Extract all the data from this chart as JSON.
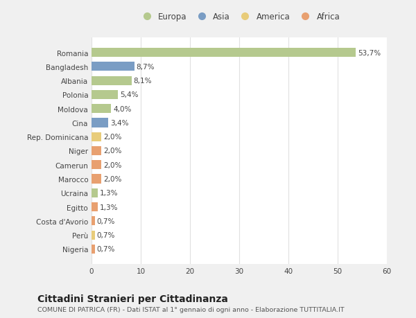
{
  "categories": [
    "Romania",
    "Bangladesh",
    "Albania",
    "Polonia",
    "Moldova",
    "Cina",
    "Rep. Dominicana",
    "Niger",
    "Camerun",
    "Marocco",
    "Ucraina",
    "Egitto",
    "Costa d'Avorio",
    "Perù",
    "Nigeria"
  ],
  "values": [
    53.7,
    8.7,
    8.1,
    5.4,
    4.0,
    3.4,
    2.0,
    2.0,
    2.0,
    2.0,
    1.3,
    1.3,
    0.7,
    0.7,
    0.7
  ],
  "labels": [
    "53,7%",
    "8,7%",
    "8,1%",
    "5,4%",
    "4,0%",
    "3,4%",
    "2,0%",
    "2,0%",
    "2,0%",
    "2,0%",
    "1,3%",
    "1,3%",
    "0,7%",
    "0,7%",
    "0,7%"
  ],
  "colors": [
    "#b5c98e",
    "#7a9dc4",
    "#b5c98e",
    "#b5c98e",
    "#b5c98e",
    "#7a9dc4",
    "#e8cc7a",
    "#e8a070",
    "#e8a070",
    "#e8a070",
    "#b5c98e",
    "#e8a070",
    "#e8a070",
    "#e8cc7a",
    "#e8a070"
  ],
  "legend_labels": [
    "Europa",
    "Asia",
    "America",
    "Africa"
  ],
  "legend_colors": [
    "#b5c98e",
    "#7a9dc4",
    "#e8cc7a",
    "#e8a070"
  ],
  "title": "Cittadini Stranieri per Cittadinanza",
  "subtitle": "COMUNE DI PATRICA (FR) - Dati ISTAT al 1° gennaio di ogni anno - Elaborazione TUTTITALIA.IT",
  "xlim": [
    0,
    60
  ],
  "xticks": [
    0,
    10,
    20,
    30,
    40,
    50,
    60
  ],
  "background_color": "#f0f0f0",
  "plot_background_color": "#ffffff",
  "grid_color": "#e0e0e0",
  "bar_height": 0.65,
  "label_fontsize": 7.5,
  "tick_fontsize": 7.5,
  "title_fontsize": 10,
  "subtitle_fontsize": 6.8,
  "legend_fontsize": 8.5
}
